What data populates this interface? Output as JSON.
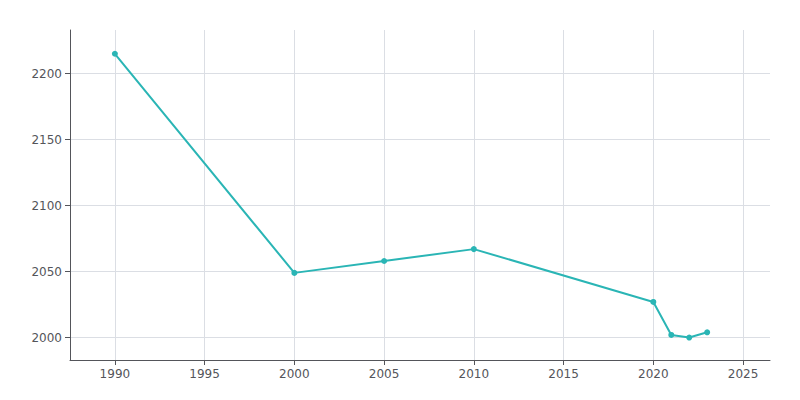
{
  "chart_data": {
    "type": "line",
    "x": [
      1990,
      2000,
      2005,
      2010,
      2020,
      2021,
      2022,
      2023
    ],
    "values": [
      2215,
      2049,
      2058,
      2067,
      2027,
      2002,
      2000,
      2004
    ],
    "color": "#2ab5b5",
    "marker": "circle",
    "xlim": [
      1987.5,
      2026.5
    ],
    "xticks": [
      1990,
      1995,
      2000,
      2005,
      2010,
      2015,
      2020,
      2025
    ],
    "ylim": [
      1983,
      2233
    ],
    "yticks": [
      2000,
      2050,
      2100,
      2150,
      2200
    ],
    "grid": true
  }
}
